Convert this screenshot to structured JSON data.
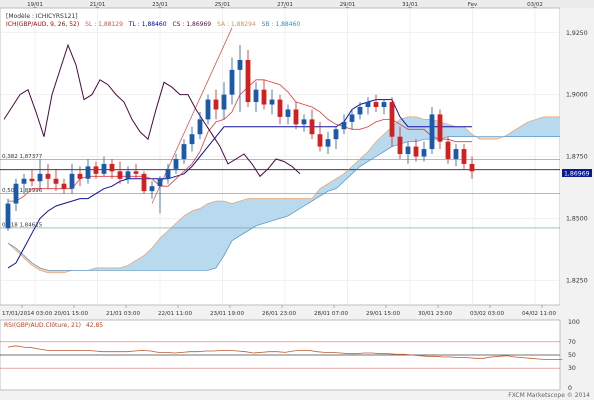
{
  "chart_data": {
    "type": "candlestick",
    "top_dates": [
      "19/01",
      "21/01",
      "23/01",
      "25/01",
      "27/01",
      "29/01",
      "31/01",
      "Fev",
      "03/02"
    ],
    "bottom_dates": [
      "17/01/2014 03:00",
      "20/01 15:00",
      "21/01 03:00",
      "22/01 11:00",
      "23/01 19:00",
      "26/01 23:00",
      "28/01 07:00",
      "29/01 15:00",
      "30/01 23:00",
      "03/02 03:00",
      "04/02 11:00"
    ],
    "legend": {
      "title": "[Modèle : ICHICYRS121]",
      "name": "ICH(GBP/AUD, 9, 26, 52)",
      "sl": "SL : 1,88129",
      "tl": "TL : 1,88460",
      "cs": "CS : 1,86969",
      "sa": "SA : 1,88294",
      "sb": "SB : 1,88460"
    },
    "price_ticks": [
      "1,9250",
      "1,9000",
      "1,8750",
      "1,8500",
      "1,8250"
    ],
    "current_price": "1,86969",
    "ylim": [
      1.815,
      1.935
    ],
    "fib_levels": [
      {
        "label": "0,382 1,87377",
        "value": 1.87377
      },
      {
        "label": "0,500 1,85996",
        "value": 1.85996
      },
      {
        "label": "0,618 1,84615",
        "value": 1.84615
      }
    ],
    "candles": [
      [
        1.846,
        1.858,
        1.845,
        1.856
      ],
      [
        1.856,
        1.866,
        1.853,
        1.864
      ],
      [
        1.864,
        1.868,
        1.86,
        1.866
      ],
      [
        1.866,
        1.87,
        1.863,
        1.865
      ],
      [
        1.865,
        1.874,
        1.862,
        1.868
      ],
      [
        1.868,
        1.872,
        1.862,
        1.866
      ],
      [
        1.866,
        1.87,
        1.861,
        1.864
      ],
      [
        1.864,
        1.866,
        1.86,
        1.862
      ],
      [
        1.862,
        1.872,
        1.86,
        1.868
      ],
      [
        1.868,
        1.871,
        1.863,
        1.866
      ],
      [
        1.866,
        1.874,
        1.864,
        1.871
      ],
      [
        1.871,
        1.873,
        1.866,
        1.868
      ],
      [
        1.868,
        1.875,
        1.867,
        1.872
      ],
      [
        1.872,
        1.874,
        1.866,
        1.869
      ],
      [
        1.869,
        1.873,
        1.864,
        1.866
      ],
      [
        1.866,
        1.871,
        1.864,
        1.869
      ],
      [
        1.869,
        1.872,
        1.866,
        1.868
      ],
      [
        1.868,
        1.869,
        1.86,
        1.861
      ],
      [
        1.861,
        1.865,
        1.858,
        1.863
      ],
      [
        1.863,
        1.867,
        1.852,
        1.866
      ],
      [
        1.866,
        1.872,
        1.864,
        1.87
      ],
      [
        1.87,
        1.876,
        1.868,
        1.874
      ],
      [
        1.874,
        1.882,
        1.872,
        1.88
      ],
      [
        1.88,
        1.887,
        1.877,
        1.884
      ],
      [
        1.884,
        1.893,
        1.882,
        1.89
      ],
      [
        1.89,
        1.9,
        1.888,
        1.898
      ],
      [
        1.898,
        1.902,
        1.89,
        1.894
      ],
      [
        1.894,
        1.905,
        1.89,
        1.9
      ],
      [
        1.9,
        1.915,
        1.896,
        1.91
      ],
      [
        1.91,
        1.92,
        1.893,
        1.914
      ],
      [
        1.914,
        1.918,
        1.895,
        1.897
      ],
      [
        1.897,
        1.905,
        1.893,
        1.902
      ],
      [
        1.902,
        1.906,
        1.894,
        1.896
      ],
      [
        1.896,
        1.902,
        1.892,
        1.898
      ],
      [
        1.898,
        1.9,
        1.888,
        1.891
      ],
      [
        1.891,
        1.896,
        1.888,
        1.894
      ],
      [
        1.894,
        1.897,
        1.886,
        1.888
      ],
      [
        1.888,
        1.892,
        1.885,
        1.89
      ],
      [
        1.89,
        1.894,
        1.882,
        1.884
      ],
      [
        1.884,
        1.889,
        1.877,
        1.879
      ],
      [
        1.879,
        1.885,
        1.876,
        1.882
      ],
      [
        1.882,
        1.887,
        1.878,
        1.886
      ],
      [
        1.886,
        1.892,
        1.884,
        1.889
      ],
      [
        1.889,
        1.894,
        1.886,
        1.892
      ],
      [
        1.892,
        1.897,
        1.89,
        1.895
      ],
      [
        1.895,
        1.899,
        1.892,
        1.897
      ],
      [
        1.897,
        1.9,
        1.893,
        1.895
      ],
      [
        1.895,
        1.898,
        1.892,
        1.897
      ],
      [
        1.897,
        1.899,
        1.879,
        1.883
      ],
      [
        1.883,
        1.887,
        1.874,
        1.876
      ],
      [
        1.876,
        1.881,
        1.872,
        1.879
      ],
      [
        1.879,
        1.882,
        1.873,
        1.875
      ],
      [
        1.875,
        1.881,
        1.873,
        1.878
      ],
      [
        1.878,
        1.895,
        1.876,
        1.892
      ],
      [
        1.892,
        1.894,
        1.878,
        1.881
      ],
      [
        1.881,
        1.883,
        1.872,
        1.874
      ],
      [
        1.874,
        1.88,
        1.871,
        1.878
      ],
      [
        1.878,
        1.88,
        1.87,
        1.872
      ],
      [
        1.872,
        1.875,
        1.866,
        1.869
      ]
    ],
    "tenkan": [
      1.857,
      1.857,
      1.859,
      1.862,
      1.862,
      1.862,
      1.862,
      1.862,
      1.862,
      1.866,
      1.867,
      1.867,
      1.867,
      1.867,
      1.867,
      1.867,
      1.867,
      1.867,
      1.866,
      1.863,
      1.863,
      1.866,
      1.869,
      1.872,
      1.877,
      1.885,
      1.889,
      1.89,
      1.893,
      1.9,
      1.903,
      1.906,
      1.906,
      1.905,
      1.904,
      1.901,
      1.897,
      1.896,
      1.895,
      1.893,
      1.89,
      1.888,
      1.887,
      1.886,
      1.886,
      1.887,
      1.889,
      1.89,
      1.89,
      1.888,
      1.886,
      1.886,
      1.886,
      1.883,
      1.882,
      1.882,
      1.881,
      1.881,
      1.881
    ],
    "kijun": [
      1.83,
      1.832,
      1.838,
      1.844,
      1.85,
      1.853,
      1.855,
      1.856,
      1.857,
      1.858,
      1.858,
      1.86,
      1.862,
      1.863,
      1.865,
      1.866,
      1.866,
      1.866,
      1.866,
      1.866,
      1.866,
      1.867,
      1.868,
      1.871,
      1.875,
      1.879,
      1.883,
      1.887,
      1.887,
      1.887,
      1.887,
      1.887,
      1.887,
      1.887,
      1.887,
      1.887,
      1.887,
      1.887,
      1.887,
      1.887,
      1.887,
      1.887,
      1.889,
      1.894,
      1.896,
      1.897,
      1.898,
      1.898,
      1.898,
      1.891,
      1.887,
      1.887,
      1.887,
      1.887,
      1.887,
      1.887,
      1.887,
      1.887,
      1.887
    ],
    "chikou": [
      1.89,
      1.895,
      1.9,
      1.902,
      1.893,
      1.883,
      1.9,
      1.91,
      1.92,
      1.912,
      1.898,
      1.9,
      1.906,
      1.904,
      1.9,
      1.897,
      1.89,
      1.885,
      1.882,
      1.894,
      1.905,
      1.903,
      1.9,
      1.9,
      1.894,
      1.889,
      1.884,
      1.879,
      1.872,
      1.874,
      1.876,
      1.872,
      1.867,
      1.87,
      1.874,
      1.873,
      1.871,
      1.868
    ],
    "senkou_a": [
      1.84,
      1.837,
      1.834,
      1.831,
      1.829,
      1.828,
      1.828,
      1.828,
      1.829,
      1.829,
      1.829,
      1.83,
      1.83,
      1.83,
      1.83,
      1.831,
      1.833,
      1.835,
      1.838,
      1.842,
      1.845,
      1.848,
      1.851,
      1.853,
      1.854,
      1.856,
      1.857,
      1.857,
      1.856,
      1.857,
      1.858,
      1.858,
      1.858,
      1.858,
      1.858,
      1.858,
      1.858,
      1.858,
      1.858,
      1.862,
      1.864,
      1.866,
      1.868,
      1.871,
      1.874,
      1.877,
      1.881,
      1.884,
      1.887,
      1.89,
      1.891,
      1.891,
      1.89,
      1.89,
      1.889,
      1.888,
      1.887,
      1.887,
      1.884,
      1.882,
      1.882,
      1.882,
      1.883,
      1.885,
      1.887,
      1.889,
      1.89,
      1.891,
      1.891,
      1.891,
      1.89
    ],
    "senkou_b": [
      1.84,
      1.838,
      1.835,
      1.832,
      1.83,
      1.829,
      1.829,
      1.829,
      1.829,
      1.829,
      1.829,
      1.829,
      1.829,
      1.829,
      1.829,
      1.829,
      1.829,
      1.829,
      1.829,
      1.829,
      1.829,
      1.829,
      1.829,
      1.829,
      1.829,
      1.829,
      1.83,
      1.835,
      1.841,
      1.843,
      1.845,
      1.847,
      1.848,
      1.849,
      1.85,
      1.851,
      1.853,
      1.855,
      1.857,
      1.859,
      1.861,
      1.862,
      1.865,
      1.868,
      1.871,
      1.873,
      1.875,
      1.877,
      1.879,
      1.88,
      1.881,
      1.881,
      1.882,
      1.882,
      1.882,
      1.883,
      1.883,
      1.883,
      1.883,
      1.883,
      1.883,
      1.883,
      1.883,
      1.883,
      1.883,
      1.883,
      1.883,
      1.883,
      1.883,
      1.883,
      1.883
    ],
    "trendline": {
      "from": [
        18,
        1.856
      ],
      "to": [
        28,
        1.927
      ]
    },
    "rsi": {
      "label": "RSI(GBP/AUD.Clôture, 21)",
      "value": "42,85",
      "ticks": [
        "100",
        "70",
        "50",
        "30",
        "0"
      ],
      "values": [
        62,
        64,
        62,
        61,
        59,
        57,
        57,
        57,
        57,
        57,
        57,
        56,
        55,
        55,
        55,
        55,
        56,
        57,
        56,
        54,
        54,
        53,
        54,
        55,
        55,
        56,
        56,
        57,
        57,
        56,
        55,
        53,
        54,
        55,
        55,
        54,
        56,
        57,
        57,
        55,
        54,
        54,
        53,
        52,
        52,
        53,
        53,
        52,
        52,
        51,
        51,
        50,
        49,
        48,
        48,
        47,
        47,
        46,
        46,
        45,
        45,
        47,
        48,
        49,
        47,
        46,
        45,
        44,
        43,
        43,
        43
      ]
    },
    "watermark": "FXCM Marketscope © 2014"
  }
}
